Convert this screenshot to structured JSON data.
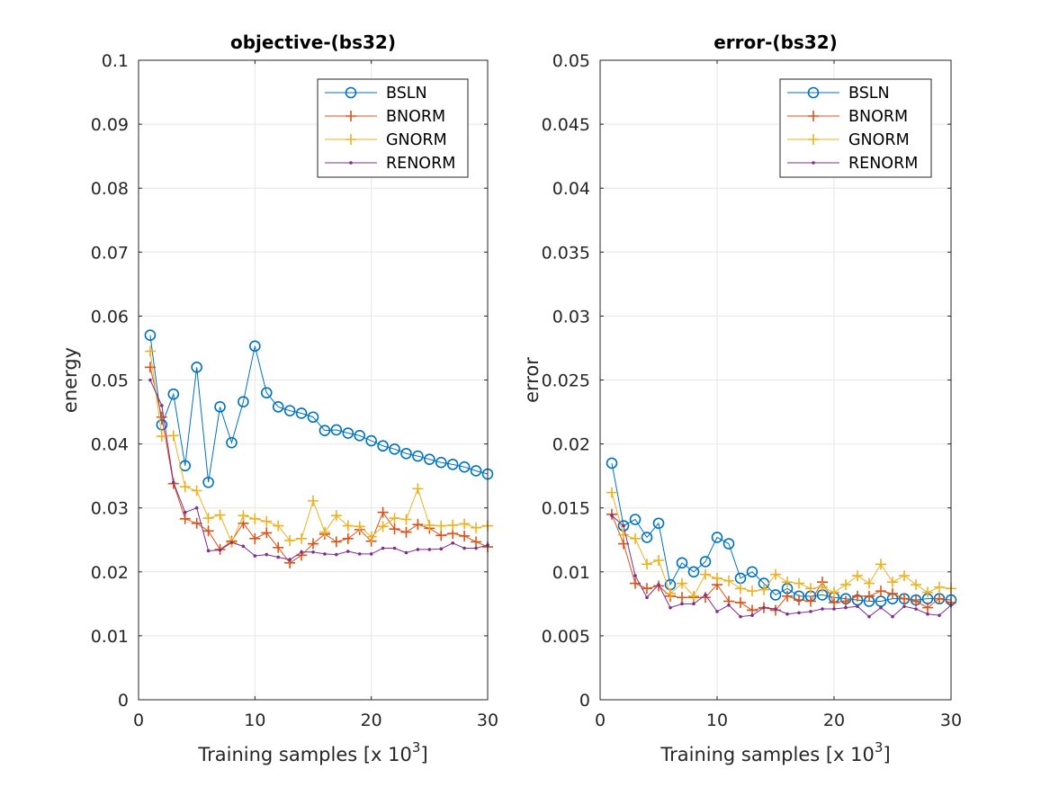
{
  "chart_data": [
    {
      "type": "line",
      "title": "objective-(bs32)",
      "xlabel": "Training samples [x 10",
      "xlabel_sup": "3",
      "xlabel_end": "]",
      "ylabel": "energy",
      "xlim": [
        0,
        30
      ],
      "ylim": [
        0,
        0.1
      ],
      "xticks": [
        0,
        10,
        20,
        30
      ],
      "xtick_labels": [
        "0",
        "10",
        "20",
        "30"
      ],
      "yticks": [
        0,
        0.01,
        0.02,
        0.03,
        0.04,
        0.05,
        0.06,
        0.07,
        0.08,
        0.09,
        0.1
      ],
      "ytick_labels": [
        "0",
        "0.01",
        "0.02",
        "0.03",
        "0.04",
        "0.05",
        "0.06",
        "0.07",
        "0.08",
        "0.09",
        "0.1"
      ],
      "grid": true,
      "legend": "top-right",
      "x": [
        1,
        2,
        3,
        4,
        5,
        6,
        7,
        8,
        9,
        10,
        11,
        12,
        13,
        14,
        15,
        16,
        17,
        18,
        19,
        20,
        21,
        22,
        23,
        24,
        25,
        26,
        27,
        28,
        29,
        30
      ],
      "series": [
        {
          "name": "BSLN",
          "color": "#0072BD",
          "marker": "circle",
          "values": [
            0.057,
            0.043,
            0.0478,
            0.0366,
            0.052,
            0.034,
            0.0458,
            0.0402,
            0.0466,
            0.0553,
            0.048,
            0.0458,
            0.0452,
            0.0448,
            0.0442,
            0.0421,
            0.0422,
            0.0417,
            0.0413,
            0.0405,
            0.0397,
            0.0392,
            0.0385,
            0.0381,
            0.0376,
            0.0371,
            0.0368,
            0.0364,
            0.0358,
            0.0353
          ]
        },
        {
          "name": "BNORM",
          "color": "#D95319",
          "marker": "plus",
          "values": [
            0.052,
            0.0442,
            0.0338,
            0.0283,
            0.0276,
            0.0264,
            0.0235,
            0.0248,
            0.0276,
            0.0252,
            0.0261,
            0.0238,
            0.0214,
            0.0226,
            0.0244,
            0.0259,
            0.0247,
            0.0252,
            0.0266,
            0.0248,
            0.0293,
            0.0267,
            0.0262,
            0.0274,
            0.0268,
            0.0257,
            0.026,
            0.0256,
            0.0247,
            0.0239
          ]
        },
        {
          "name": "GNORM",
          "color": "#EDB120",
          "marker": "plus",
          "values": [
            0.0545,
            0.0412,
            0.0413,
            0.0333,
            0.0327,
            0.0284,
            0.0289,
            0.0246,
            0.0288,
            0.0283,
            0.0279,
            0.0272,
            0.0249,
            0.0252,
            0.0311,
            0.0262,
            0.0288,
            0.0272,
            0.0271,
            0.0255,
            0.0271,
            0.0284,
            0.0282,
            0.033,
            0.0273,
            0.0272,
            0.0273,
            0.0275,
            0.0269,
            0.0272
          ]
        },
        {
          "name": "RENORM",
          "color": "#7E2F8E",
          "marker": "dot",
          "values": [
            0.05,
            0.046,
            0.034,
            0.0293,
            0.03,
            0.0233,
            0.0234,
            0.0246,
            0.024,
            0.0225,
            0.0227,
            0.0223,
            0.0219,
            0.0231,
            0.0231,
            0.0228,
            0.0227,
            0.0232,
            0.0228,
            0.0228,
            0.0237,
            0.0237,
            0.023,
            0.0235,
            0.0235,
            0.0236,
            0.0245,
            0.0237,
            0.0237,
            0.0242
          ]
        }
      ]
    },
    {
      "type": "line",
      "title": "error-(bs32)",
      "xlabel": "Training samples [x 10",
      "xlabel_sup": "3",
      "xlabel_end": "]",
      "ylabel": "error",
      "xlim": [
        0,
        30
      ],
      "ylim": [
        0,
        0.05
      ],
      "xticks": [
        0,
        10,
        20,
        30
      ],
      "xtick_labels": [
        "0",
        "10",
        "20",
        "30"
      ],
      "yticks": [
        0,
        0.005,
        0.01,
        0.015,
        0.02,
        0.025,
        0.03,
        0.035,
        0.04,
        0.045,
        0.05
      ],
      "ytick_labels": [
        "0",
        "0.005",
        "0.01",
        "0.015",
        "0.02",
        "0.025",
        "0.03",
        "0.035",
        "0.04",
        "0.045",
        "0.05"
      ],
      "grid": true,
      "legend": "top-right",
      "x": [
        1,
        2,
        3,
        4,
        5,
        6,
        7,
        8,
        9,
        10,
        11,
        12,
        13,
        14,
        15,
        16,
        17,
        18,
        19,
        20,
        21,
        22,
        23,
        24,
        25,
        26,
        27,
        28,
        29,
        30
      ],
      "series": [
        {
          "name": "BSLN",
          "color": "#0072BD",
          "marker": "circle",
          "values": [
            0.0185,
            0.0136,
            0.0141,
            0.0127,
            0.0138,
            0.009,
            0.0107,
            0.01,
            0.0108,
            0.0127,
            0.0122,
            0.0095,
            0.01,
            0.0091,
            0.0082,
            0.0087,
            0.0081,
            0.0081,
            0.0082,
            0.008,
            0.0079,
            0.0078,
            0.0077,
            0.0077,
            0.0079,
            0.0079,
            0.0078,
            0.0079,
            0.0079,
            0.0078
          ]
        },
        {
          "name": "BNORM",
          "color": "#D95319",
          "marker": "plus",
          "values": [
            0.0145,
            0.0122,
            0.0091,
            0.0087,
            0.0089,
            0.0081,
            0.008,
            0.008,
            0.008,
            0.009,
            0.0077,
            0.0076,
            0.007,
            0.0072,
            0.007,
            0.0081,
            0.0078,
            0.0077,
            0.0092,
            0.0076,
            0.0077,
            0.0081,
            0.0081,
            0.0085,
            0.0083,
            0.0079,
            0.0077,
            0.0072,
            0.0079,
            0.0076
          ]
        },
        {
          "name": "GNORM",
          "color": "#EDB120",
          "marker": "plus",
          "values": [
            0.0162,
            0.0129,
            0.0126,
            0.0106,
            0.0109,
            0.0083,
            0.0091,
            0.0081,
            0.0098,
            0.0095,
            0.0093,
            0.0087,
            0.0085,
            0.0086,
            0.0098,
            0.0092,
            0.0091,
            0.0087,
            0.0088,
            0.0084,
            0.009,
            0.0097,
            0.0091,
            0.0106,
            0.0092,
            0.0097,
            0.009,
            0.0084,
            0.0088,
            0.0087
          ]
        },
        {
          "name": "RENORM",
          "color": "#7E2F8E",
          "marker": "dot",
          "values": [
            0.0144,
            0.0136,
            0.0097,
            0.008,
            0.009,
            0.0072,
            0.0075,
            0.0075,
            0.0082,
            0.0069,
            0.0074,
            0.0065,
            0.0066,
            0.0072,
            0.0071,
            0.0067,
            0.0068,
            0.0069,
            0.0071,
            0.0071,
            0.0072,
            0.0073,
            0.0065,
            0.0072,
            0.0065,
            0.0073,
            0.0071,
            0.0067,
            0.0066,
            0.0074
          ]
        }
      ]
    }
  ]
}
